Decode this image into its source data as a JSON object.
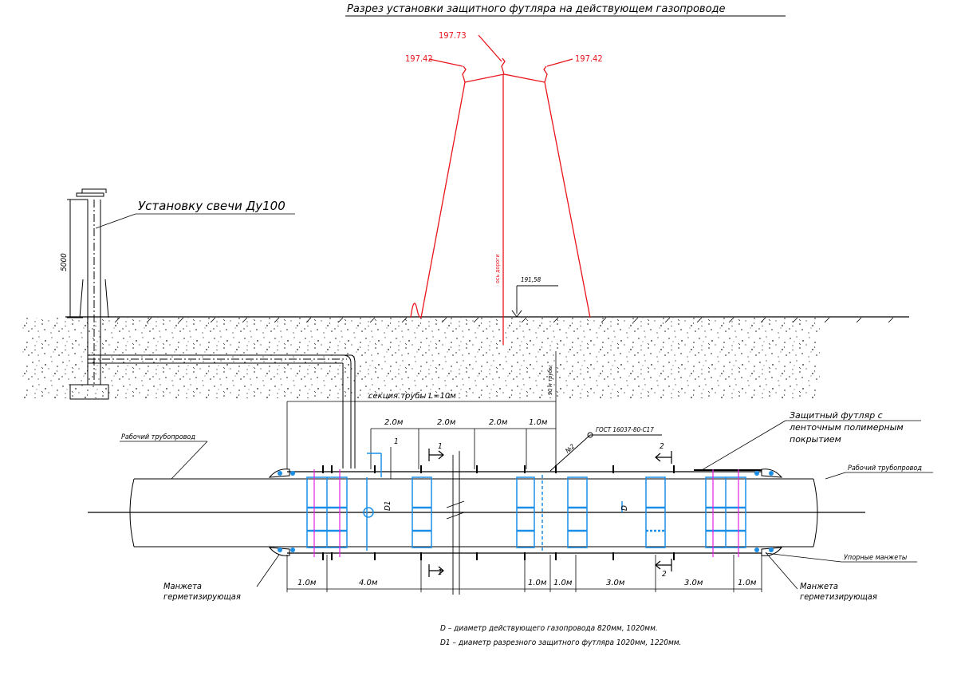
{
  "title": "Разрез установки защитного футляра на действующем газопроводе",
  "elevations": {
    "top": "197.73",
    "left": "197.42",
    "right": "197.42",
    "ground": "191,58",
    "axis_label": "ось дороги"
  },
  "labels": {
    "vent_install": "Установку свечи Ду100",
    "vent_height": "5000",
    "pipe_section": "секция трубы L=10м",
    "working_pipe_left": "Рабочий трубопровод",
    "working_pipe_right": "Рабочий трубопровод",
    "case_line1": "Защитный футляр с",
    "case_line2": "ленточным полимерным",
    "case_line3": "покрытием",
    "gost": "ГОСТ 16037-80-С17",
    "weld_no": "№2",
    "cuff_left_1": "Манжета",
    "cuff_left_2": "герметизирующая",
    "cuff_right_1": "Манжета",
    "cuff_right_2": "герметизирующая",
    "seal_cuffs": "Упорные манжеты",
    "d1_symbol": "D1",
    "d_symbol": "D",
    "sec1_top": "1",
    "sec1_bottom": "1",
    "sec2_top": "2",
    "sec2_bottom": "2",
    "callout_1": "1",
    "vertical_mark": "90 м трубы"
  },
  "dims_top": [
    "2.0м",
    "2.0м",
    "2.0м",
    "1.0м"
  ],
  "dims_bottom": [
    "1.0м",
    "4.0м",
    "1.0м",
    "1.0м",
    "3.0м",
    "3.0м",
    "1.0м"
  ],
  "notes": {
    "line1": "D – диаметр действующего газопровода 820мм, 1020мм.",
    "line2": "D1 – диаметр разрезного защитного футляра 1020мм, 1220мм."
  },
  "colors": {
    "red": "#e8141b",
    "blue": "#1a8fe8",
    "magenta": "#e81ce0",
    "line": "#000000"
  }
}
